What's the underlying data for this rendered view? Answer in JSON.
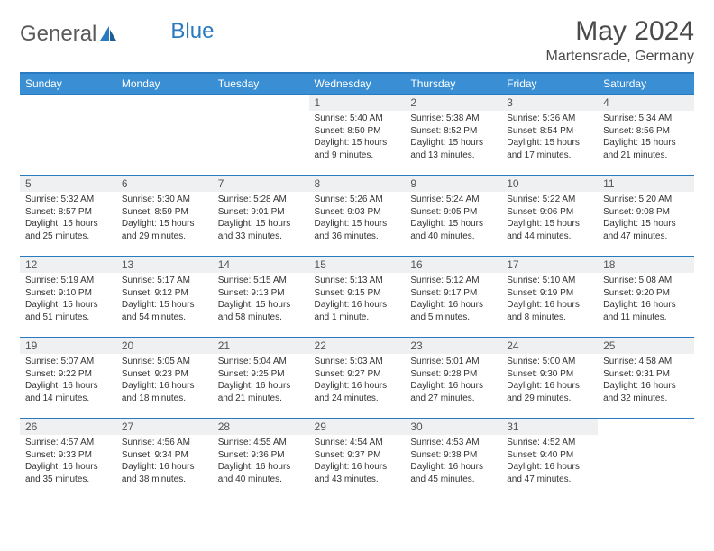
{
  "brand": {
    "part1": "General",
    "part2": "Blue"
  },
  "title": "May 2024",
  "location": "Martensrade, Germany",
  "colors": {
    "header_bg": "#3a8fd4",
    "border": "#2a7abf",
    "daynum_bg": "#eef0f2",
    "text": "#333333"
  },
  "weekdays": [
    "Sunday",
    "Monday",
    "Tuesday",
    "Wednesday",
    "Thursday",
    "Friday",
    "Saturday"
  ],
  "weeks": [
    [
      {
        "n": "",
        "sr": "",
        "ss": "",
        "dl": ""
      },
      {
        "n": "",
        "sr": "",
        "ss": "",
        "dl": ""
      },
      {
        "n": "",
        "sr": "",
        "ss": "",
        "dl": ""
      },
      {
        "n": "1",
        "sr": "Sunrise: 5:40 AM",
        "ss": "Sunset: 8:50 PM",
        "dl": "Daylight: 15 hours and 9 minutes."
      },
      {
        "n": "2",
        "sr": "Sunrise: 5:38 AM",
        "ss": "Sunset: 8:52 PM",
        "dl": "Daylight: 15 hours and 13 minutes."
      },
      {
        "n": "3",
        "sr": "Sunrise: 5:36 AM",
        "ss": "Sunset: 8:54 PM",
        "dl": "Daylight: 15 hours and 17 minutes."
      },
      {
        "n": "4",
        "sr": "Sunrise: 5:34 AM",
        "ss": "Sunset: 8:56 PM",
        "dl": "Daylight: 15 hours and 21 minutes."
      }
    ],
    [
      {
        "n": "5",
        "sr": "Sunrise: 5:32 AM",
        "ss": "Sunset: 8:57 PM",
        "dl": "Daylight: 15 hours and 25 minutes."
      },
      {
        "n": "6",
        "sr": "Sunrise: 5:30 AM",
        "ss": "Sunset: 8:59 PM",
        "dl": "Daylight: 15 hours and 29 minutes."
      },
      {
        "n": "7",
        "sr": "Sunrise: 5:28 AM",
        "ss": "Sunset: 9:01 PM",
        "dl": "Daylight: 15 hours and 33 minutes."
      },
      {
        "n": "8",
        "sr": "Sunrise: 5:26 AM",
        "ss": "Sunset: 9:03 PM",
        "dl": "Daylight: 15 hours and 36 minutes."
      },
      {
        "n": "9",
        "sr": "Sunrise: 5:24 AM",
        "ss": "Sunset: 9:05 PM",
        "dl": "Daylight: 15 hours and 40 minutes."
      },
      {
        "n": "10",
        "sr": "Sunrise: 5:22 AM",
        "ss": "Sunset: 9:06 PM",
        "dl": "Daylight: 15 hours and 44 minutes."
      },
      {
        "n": "11",
        "sr": "Sunrise: 5:20 AM",
        "ss": "Sunset: 9:08 PM",
        "dl": "Daylight: 15 hours and 47 minutes."
      }
    ],
    [
      {
        "n": "12",
        "sr": "Sunrise: 5:19 AM",
        "ss": "Sunset: 9:10 PM",
        "dl": "Daylight: 15 hours and 51 minutes."
      },
      {
        "n": "13",
        "sr": "Sunrise: 5:17 AM",
        "ss": "Sunset: 9:12 PM",
        "dl": "Daylight: 15 hours and 54 minutes."
      },
      {
        "n": "14",
        "sr": "Sunrise: 5:15 AM",
        "ss": "Sunset: 9:13 PM",
        "dl": "Daylight: 15 hours and 58 minutes."
      },
      {
        "n": "15",
        "sr": "Sunrise: 5:13 AM",
        "ss": "Sunset: 9:15 PM",
        "dl": "Daylight: 16 hours and 1 minute."
      },
      {
        "n": "16",
        "sr": "Sunrise: 5:12 AM",
        "ss": "Sunset: 9:17 PM",
        "dl": "Daylight: 16 hours and 5 minutes."
      },
      {
        "n": "17",
        "sr": "Sunrise: 5:10 AM",
        "ss": "Sunset: 9:19 PM",
        "dl": "Daylight: 16 hours and 8 minutes."
      },
      {
        "n": "18",
        "sr": "Sunrise: 5:08 AM",
        "ss": "Sunset: 9:20 PM",
        "dl": "Daylight: 16 hours and 11 minutes."
      }
    ],
    [
      {
        "n": "19",
        "sr": "Sunrise: 5:07 AM",
        "ss": "Sunset: 9:22 PM",
        "dl": "Daylight: 16 hours and 14 minutes."
      },
      {
        "n": "20",
        "sr": "Sunrise: 5:05 AM",
        "ss": "Sunset: 9:23 PM",
        "dl": "Daylight: 16 hours and 18 minutes."
      },
      {
        "n": "21",
        "sr": "Sunrise: 5:04 AM",
        "ss": "Sunset: 9:25 PM",
        "dl": "Daylight: 16 hours and 21 minutes."
      },
      {
        "n": "22",
        "sr": "Sunrise: 5:03 AM",
        "ss": "Sunset: 9:27 PM",
        "dl": "Daylight: 16 hours and 24 minutes."
      },
      {
        "n": "23",
        "sr": "Sunrise: 5:01 AM",
        "ss": "Sunset: 9:28 PM",
        "dl": "Daylight: 16 hours and 27 minutes."
      },
      {
        "n": "24",
        "sr": "Sunrise: 5:00 AM",
        "ss": "Sunset: 9:30 PM",
        "dl": "Daylight: 16 hours and 29 minutes."
      },
      {
        "n": "25",
        "sr": "Sunrise: 4:58 AM",
        "ss": "Sunset: 9:31 PM",
        "dl": "Daylight: 16 hours and 32 minutes."
      }
    ],
    [
      {
        "n": "26",
        "sr": "Sunrise: 4:57 AM",
        "ss": "Sunset: 9:33 PM",
        "dl": "Daylight: 16 hours and 35 minutes."
      },
      {
        "n": "27",
        "sr": "Sunrise: 4:56 AM",
        "ss": "Sunset: 9:34 PM",
        "dl": "Daylight: 16 hours and 38 minutes."
      },
      {
        "n": "28",
        "sr": "Sunrise: 4:55 AM",
        "ss": "Sunset: 9:36 PM",
        "dl": "Daylight: 16 hours and 40 minutes."
      },
      {
        "n": "29",
        "sr": "Sunrise: 4:54 AM",
        "ss": "Sunset: 9:37 PM",
        "dl": "Daylight: 16 hours and 43 minutes."
      },
      {
        "n": "30",
        "sr": "Sunrise: 4:53 AM",
        "ss": "Sunset: 9:38 PM",
        "dl": "Daylight: 16 hours and 45 minutes."
      },
      {
        "n": "31",
        "sr": "Sunrise: 4:52 AM",
        "ss": "Sunset: 9:40 PM",
        "dl": "Daylight: 16 hours and 47 minutes."
      },
      {
        "n": "",
        "sr": "",
        "ss": "",
        "dl": ""
      }
    ]
  ]
}
